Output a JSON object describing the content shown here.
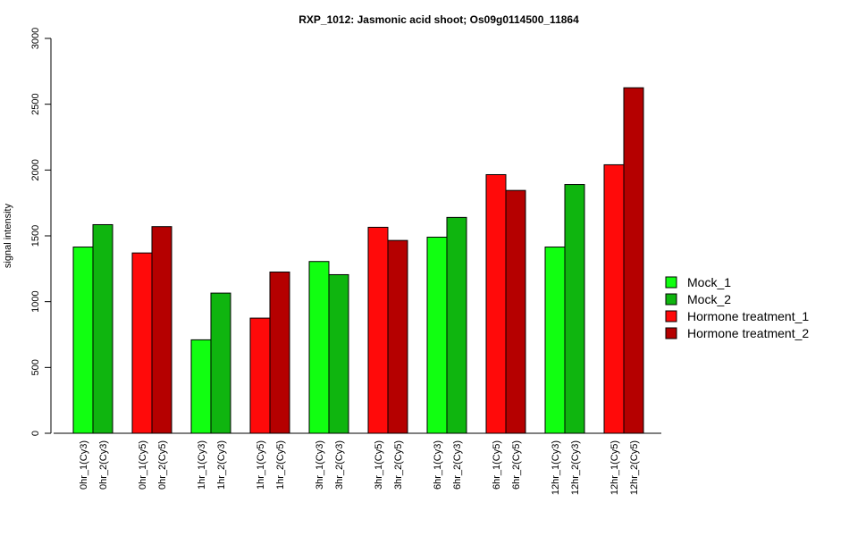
{
  "chart_data": {
    "type": "bar",
    "title": "RXP_1012: Jasmonic acid shoot; Os09g0114500_11864",
    "ylabel": "signal intensity",
    "xlabel": "",
    "ylim": [
      0,
      3000
    ],
    "yticks": [
      0,
      500,
      1000,
      1500,
      2000,
      2500,
      3000
    ],
    "grid": false,
    "legend_position": "right",
    "categories": [
      "0hr_1(Cy3)",
      "0hr_2(Cy3)",
      "0hr_1(Cy5)",
      "0hr_2(Cy5)",
      "1hr_1(Cy3)",
      "1hr_2(Cy3)",
      "1hr_1(Cy5)",
      "1hr_2(Cy5)",
      "3hr_1(Cy3)",
      "3hr_2(Cy3)",
      "3hr_1(Cy5)",
      "3hr_2(Cy5)",
      "6hr_1(Cy3)",
      "6hr_2(Cy3)",
      "6hr_1(Cy5)",
      "6hr_2(Cy5)",
      "12hr_1(Cy3)",
      "12hr_2(Cy3)",
      "12hr_1(Cy5)",
      "12hr_2(Cy5)"
    ],
    "values": [
      1415,
      1585,
      1370,
      1570,
      710,
      1065,
      875,
      1225,
      1305,
      1205,
      1565,
      1465,
      1490,
      1640,
      1965,
      1845,
      1415,
      1890,
      2040,
      2625
    ],
    "bar_series": [
      0,
      1,
      2,
      3,
      0,
      1,
      2,
      3,
      0,
      1,
      2,
      3,
      0,
      1,
      2,
      3,
      0,
      1,
      2,
      3
    ],
    "series": [
      {
        "name": "Mock_1",
        "color": "#11FF11"
      },
      {
        "name": "Mock_2",
        "color": "#0FB50F"
      },
      {
        "name": "Hormone treatment_1",
        "color": "#FF0A0A"
      },
      {
        "name": "Hormone treatment_2",
        "color": "#B50000"
      }
    ]
  }
}
